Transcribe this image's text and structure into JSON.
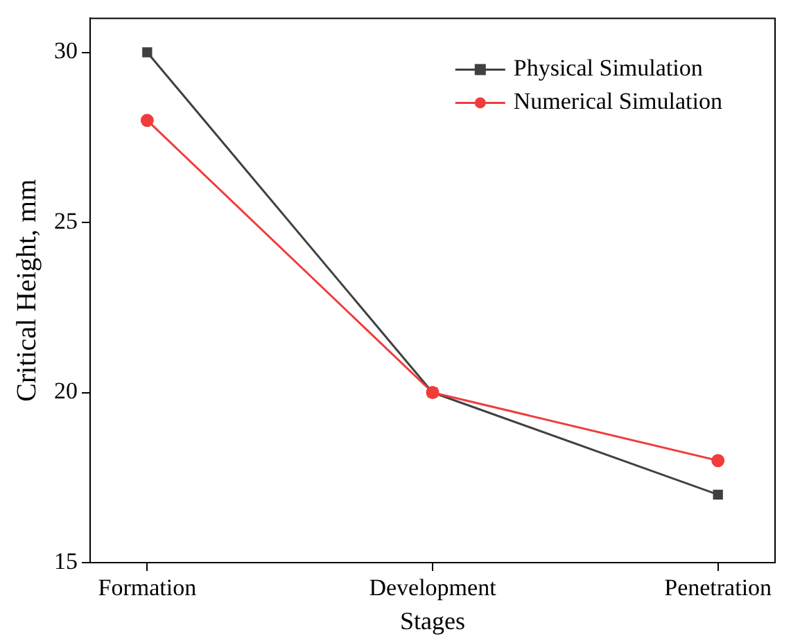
{
  "chart_data": {
    "type": "line",
    "xlabel": "Stages",
    "ylabel": "Critical Height, mm",
    "categories": [
      "Formation",
      "Development",
      "Penetration"
    ],
    "series": [
      {
        "name": "Physical Simulation",
        "color": "#404040",
        "marker": "square",
        "values": [
          30,
          20,
          17
        ]
      },
      {
        "name": "Numerical Simulation",
        "color": "#f03c3c",
        "marker": "circle",
        "values": [
          28,
          20,
          18
        ]
      }
    ],
    "ylim": [
      15,
      31
    ],
    "yticks": [
      15,
      20,
      25,
      30
    ],
    "grid": false,
    "legend": "top right"
  }
}
